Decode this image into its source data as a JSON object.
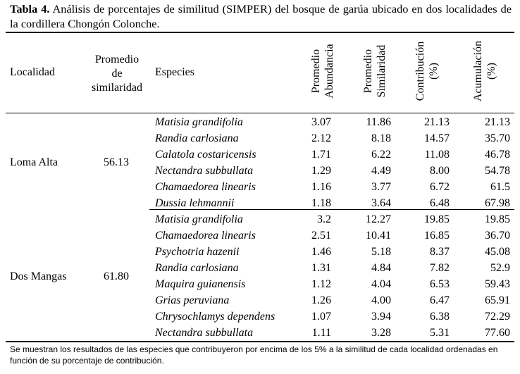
{
  "caption": {
    "label": "Tabla 4.",
    "text": " Análisis de porcentajes de similitud (SIMPER) del bosque de garúa ubicado en dos localidades de la cordillera Chongón Colonche."
  },
  "headers": {
    "localidad": "Localidad",
    "promedio_similaridad": [
      "Promedio",
      "de",
      "similaridad"
    ],
    "especies": "Especies",
    "promedio_abundancia": [
      "Promedio",
      "Abundancia"
    ],
    "promedio_similaridad_col": [
      "Promedio",
      "Similaridad"
    ],
    "contribucion": [
      "Contribución",
      "(%)"
    ],
    "acumulacion": [
      "Acumulación",
      "(%)"
    ]
  },
  "groups": [
    {
      "localidad": "Loma Alta",
      "promedio": "56.13",
      "rows": [
        {
          "especie": "Matisia grandifolia",
          "abundancia": "3.07",
          "similaridad": "11.86",
          "contribucion": "21.13",
          "acumulacion": "21.13"
        },
        {
          "especie": "Randia carlosiana",
          "abundancia": "2.12",
          "similaridad": "8.18",
          "contribucion": "14.57",
          "acumulacion": "35.70"
        },
        {
          "especie": "Calatola costaricensis",
          "abundancia": "1.71",
          "similaridad": "6.22",
          "contribucion": "11.08",
          "acumulacion": "46.78"
        },
        {
          "especie": "Nectandra subbullata",
          "abundancia": "1.29",
          "similaridad": "4.49",
          "contribucion": "8.00",
          "acumulacion": "54.78"
        },
        {
          "especie": "Chamaedorea linearis",
          "abundancia": "1.16",
          "similaridad": "3.77",
          "contribucion": "6.72",
          "acumulacion": "61.5"
        },
        {
          "especie": "Dussia lehmannii",
          "abundancia": "1.18",
          "similaridad": "3.64",
          "contribucion": "6.48",
          "acumulacion": "67.98"
        }
      ]
    },
    {
      "localidad": "Dos Mangas",
      "promedio": "61.80",
      "rows": [
        {
          "especie": "Matisia grandifolia",
          "abundancia": "3.2",
          "similaridad": "12.27",
          "contribucion": "19.85",
          "acumulacion": "19.85"
        },
        {
          "especie": "Chamaedorea linearis",
          "abundancia": "2.51",
          "similaridad": "10.41",
          "contribucion": "16.85",
          "acumulacion": "36.70"
        },
        {
          "especie": "Psychotria hazenii",
          "abundancia": "1.46",
          "similaridad": "5.18",
          "contribucion": "8.37",
          "acumulacion": "45.08"
        },
        {
          "especie": "Randia carlosiana",
          "abundancia": "1.31",
          "similaridad": "4.84",
          "contribucion": "7.82",
          "acumulacion": "52.9"
        },
        {
          "especie": "Maquira guianensis",
          "abundancia": "1.12",
          "similaridad": "4.04",
          "contribucion": "6.53",
          "acumulacion": "59.43"
        },
        {
          "especie": "Grias peruviana",
          "abundancia": "1.26",
          "similaridad": "4.00",
          "contribucion": "6.47",
          "acumulacion": "65.91"
        },
        {
          "especie": "Chrysochlamys dependens",
          "abundancia": "1.07",
          "similaridad": "3.94",
          "contribucion": "6.38",
          "acumulacion": "72.29"
        },
        {
          "especie": "Nectandra subbullata",
          "abundancia": "1.11",
          "similaridad": "3.28",
          "contribucion": "5.31",
          "acumulacion": "77.60"
        }
      ]
    }
  ],
  "footnote": "Se muestran los resultados de las especies que contribuyeron por encima de los 5% a la similitud de cada localidad ordenadas en función de su porcentaje de contribución."
}
